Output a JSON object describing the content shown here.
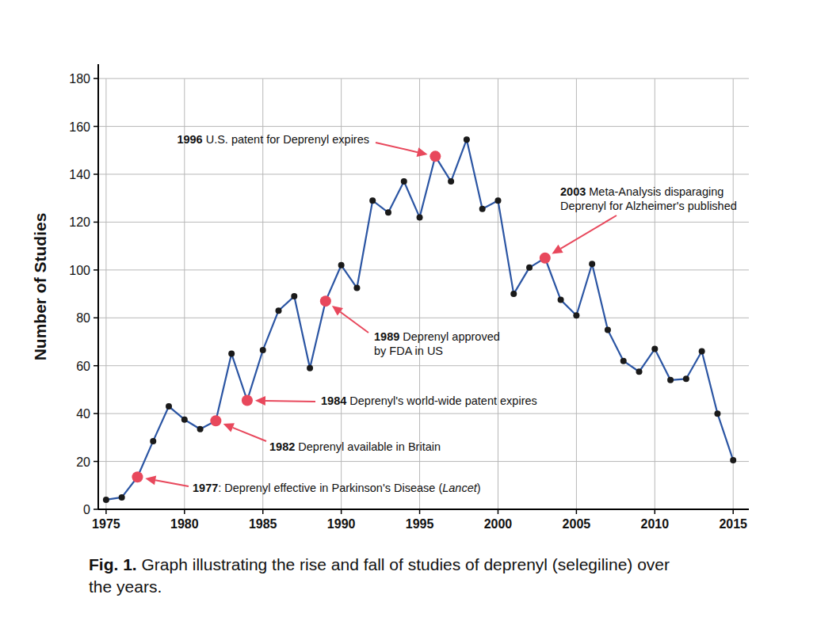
{
  "chart_data": {
    "type": "line",
    "title": [
      [
        {
          "text": "Fig. 1.",
          "style": "bold"
        },
        {
          "text": " Graph illustrating the rise and fall of studies of deprenyl (selegiline) over",
          "style": "normal"
        }
      ],
      [
        {
          "text": "the years.",
          "style": "normal"
        }
      ]
    ],
    "y_label": "Number of Studies",
    "x": [
      1975,
      1976,
      1977,
      1978,
      1979,
      1980,
      1981,
      1982,
      1983,
      1984,
      1985,
      1986,
      1987,
      1988,
      1989,
      1990,
      1991,
      1992,
      1993,
      1994,
      1995,
      1996,
      1997,
      1998,
      1999,
      2000,
      2001,
      2002,
      2003,
      2004,
      2005,
      2006,
      2007,
      2008,
      2009,
      2010,
      2011,
      2012,
      2013,
      2014,
      2015
    ],
    "values": [
      4,
      5,
      13.5,
      28.5,
      43,
      37.5,
      33.5,
      37,
      65,
      45.5,
      66.5,
      83,
      89,
      59,
      87,
      102,
      92.5,
      129,
      124,
      137,
      122,
      147.5,
      137,
      154.5,
      125.5,
      129,
      90,
      101,
      105,
      87.5,
      81,
      102.5,
      75,
      62,
      57.5,
      67,
      54,
      54.5,
      66,
      40,
      20.5
    ],
    "color": "#2b55a3",
    "marker": "circle",
    "xlim": [
      1974.5,
      2016
    ],
    "xticks": [
      1975,
      1980,
      1985,
      1990,
      1995,
      2000,
      2005,
      2010,
      2015
    ],
    "ylim": [
      0,
      186
    ],
    "yticks": [
      0,
      20,
      40,
      60,
      80,
      100,
      120,
      140,
      160,
      180
    ],
    "grid": true,
    "annotations": [
      {
        "x": 1977,
        "lines": [
          [
            {
              "text": "1977",
              "style": "bold"
            },
            {
              "text": ": Deprenyl effective in Parkinson's Disease (",
              "style": "normal"
            },
            {
              "text": "Lancet",
              "style": "italic"
            },
            {
              "text": ")",
              "style": "normal"
            }
          ]
        ]
      },
      {
        "x": 1982,
        "lines": [
          [
            {
              "text": "1982",
              "style": "bold"
            },
            {
              "text": " Deprenyl available in Britain",
              "style": "normal"
            }
          ]
        ]
      },
      {
        "x": 1984,
        "lines": [
          [
            {
              "text": "1984",
              "style": "bold"
            },
            {
              "text": " Deprenyl's world-wide patent expires",
              "style": "normal"
            }
          ]
        ]
      },
      {
        "x": 1989,
        "lines": [
          [
            {
              "text": "1989",
              "style": "bold"
            },
            {
              "text": " Deprenyl approved",
              "style": "normal"
            }
          ],
          [
            {
              "text": "by FDA in US",
              "style": "normal"
            }
          ]
        ]
      },
      {
        "x": 1996,
        "lines": [
          [
            {
              "text": "1996",
              "style": "bold"
            },
            {
              "text": " U.S. patent for Deprenyl expires",
              "style": "normal"
            }
          ]
        ]
      },
      {
        "x": 2003,
        "lines": [
          [
            {
              "text": "2003",
              "style": "bold"
            },
            {
              "text": " Meta-Analysis disparaging",
              "style": "normal"
            }
          ],
          [
            {
              "text": "Deprenyl for Alzheimer's published",
              "style": "normal"
            }
          ]
        ]
      }
    ]
  }
}
